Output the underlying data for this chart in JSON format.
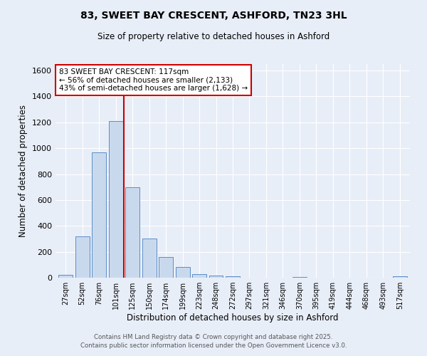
{
  "title": "83, SWEET BAY CRESCENT, ASHFORD, TN23 3HL",
  "subtitle": "Size of property relative to detached houses in Ashford",
  "xlabel": "Distribution of detached houses by size in Ashford",
  "ylabel": "Number of detached properties",
  "bin_labels": [
    "27sqm",
    "52sqm",
    "76sqm",
    "101sqm",
    "125sqm",
    "150sqm",
    "174sqm",
    "199sqm",
    "223sqm",
    "248sqm",
    "272sqm",
    "297sqm",
    "321sqm",
    "346sqm",
    "370sqm",
    "395sqm",
    "419sqm",
    "444sqm",
    "468sqm",
    "493sqm",
    "517sqm"
  ],
  "bar_values": [
    20,
    320,
    970,
    1210,
    700,
    305,
    160,
    80,
    25,
    15,
    10,
    0,
    0,
    0,
    8,
    0,
    0,
    0,
    0,
    0,
    12
  ],
  "bar_color": "#c9d9ed",
  "bar_edge_color": "#5b8dc8",
  "vline_color": "#cc0000",
  "vline_position": 3.5,
  "annotation_text": "83 SWEET BAY CRESCENT: 117sqm\n← 56% of detached houses are smaller (2,133)\n43% of semi-detached houses are larger (1,628) →",
  "annotation_box_color": "#ffffff",
  "annotation_box_edge": "#cc0000",
  "ylim": [
    0,
    1650
  ],
  "yticks": [
    0,
    200,
    400,
    600,
    800,
    1000,
    1200,
    1400,
    1600
  ],
  "footer_text": "Contains HM Land Registry data © Crown copyright and database right 2025.\nContains public sector information licensed under the Open Government Licence v3.0.",
  "bg_color": "#e8eef8",
  "grid_color": "#ffffff",
  "title_fontsize": 10,
  "subtitle_fontsize": 8.5
}
